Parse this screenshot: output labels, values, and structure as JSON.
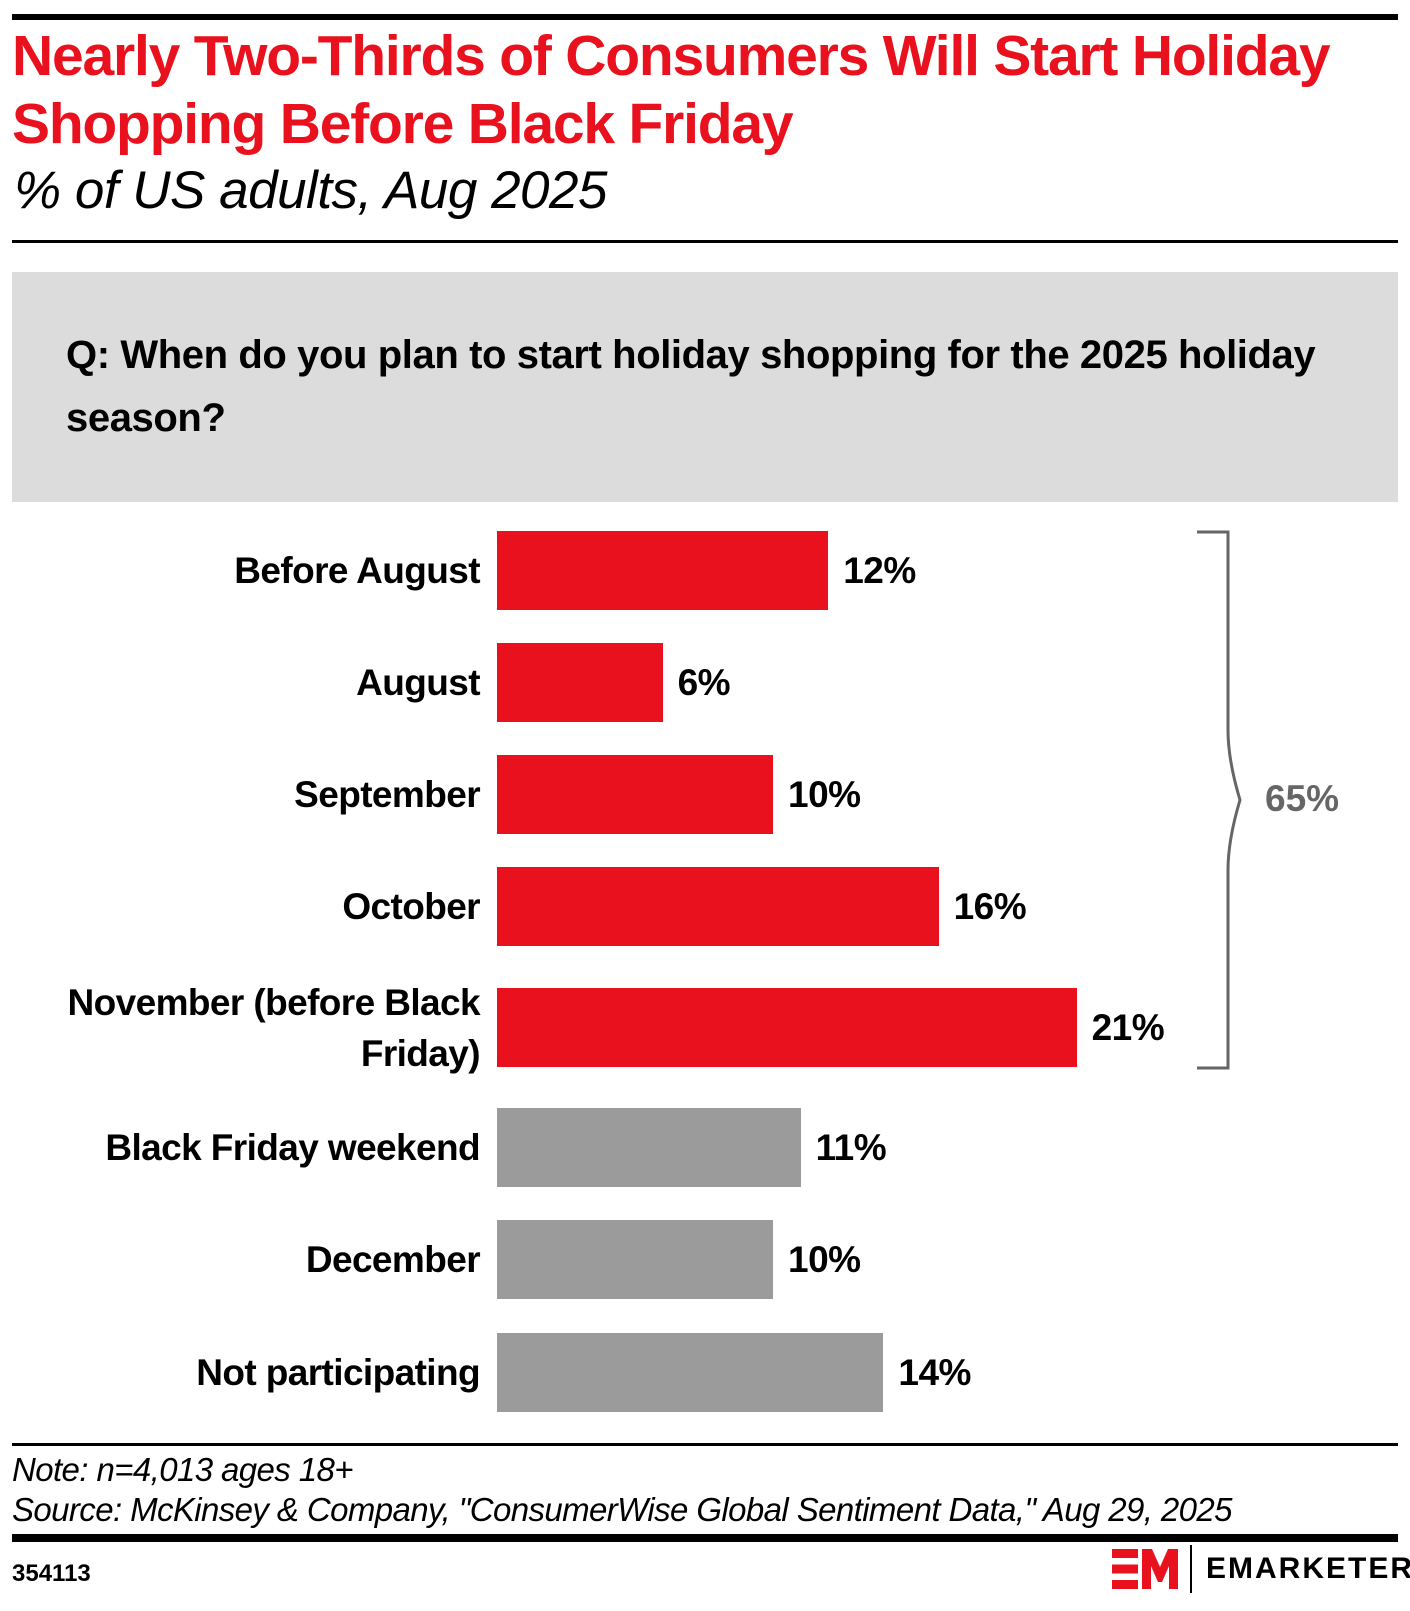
{
  "header": {
    "title": "Nearly Two-Thirds of Consumers Will Start Holiday Shopping Before Black Friday",
    "subtitle": "% of US adults, Aug 2025"
  },
  "question": "Q: When do you plan to start holiday shopping for the 2025 holiday season?",
  "colors": {
    "highlight": "#e8111d",
    "neutral": "#9b9b9b",
    "bracket": "#666666",
    "question_bg": "#dcdcdc"
  },
  "rows": [
    {
      "label": "Before August",
      "value": 12,
      "value_label": "12%",
      "group": "before"
    },
    {
      "label": "August",
      "value": 6,
      "value_label": "6%",
      "group": "before"
    },
    {
      "label": "September",
      "value": 10,
      "value_label": "10%",
      "group": "before"
    },
    {
      "label": "October",
      "value": 16,
      "value_label": "16%",
      "group": "before"
    },
    {
      "label": "November (before Black Friday)",
      "value": 21,
      "value_label": "21%",
      "group": "before"
    },
    {
      "label": "Black Friday weekend",
      "value": 11,
      "value_label": "11%",
      "group": "other"
    },
    {
      "label": "December",
      "value": 10,
      "value_label": "10%",
      "group": "other"
    },
    {
      "label": "Not participating",
      "value": 14,
      "value_label": "14%",
      "group": "other"
    }
  ],
  "bracket": {
    "label": "65%"
  },
  "footer": {
    "note": "Note: n=4,013 ages 18+",
    "source": "Source: McKinsey & Company, \"ConsumerWise Global Sentiment Data,\" Aug 29, 2025",
    "chart_id": "354113",
    "brand": "EMARKETER"
  },
  "chart_data": {
    "type": "bar",
    "orientation": "horizontal",
    "title": "Nearly Two-Thirds of Consumers Will Start Holiday Shopping Before Black Friday",
    "subtitle": "% of US adults, Aug 2025",
    "question": "Q: When do you plan to start holiday shopping for the 2025 holiday season?",
    "categories": [
      "Before August",
      "August",
      "September",
      "October",
      "November (before Black Friday)",
      "Black Friday weekend",
      "December",
      "Not participating"
    ],
    "values": [
      12,
      6,
      10,
      16,
      21,
      11,
      10,
      14
    ],
    "unit": "%",
    "highlighted_categories": [
      "Before August",
      "August",
      "September",
      "October",
      "November (before Black Friday)"
    ],
    "annotations": [
      {
        "type": "bracket",
        "spans": [
          "Before August",
          "November (before Black Friday)"
        ],
        "label": "65%"
      }
    ],
    "xlabel": "",
    "ylabel": "",
    "grid": false,
    "legend": null,
    "note": "Note: n=4,013 ages 18+",
    "source": "Source: McKinsey & Company, \"ConsumerWise Global Sentiment Data,\" Aug 29, 2025"
  }
}
